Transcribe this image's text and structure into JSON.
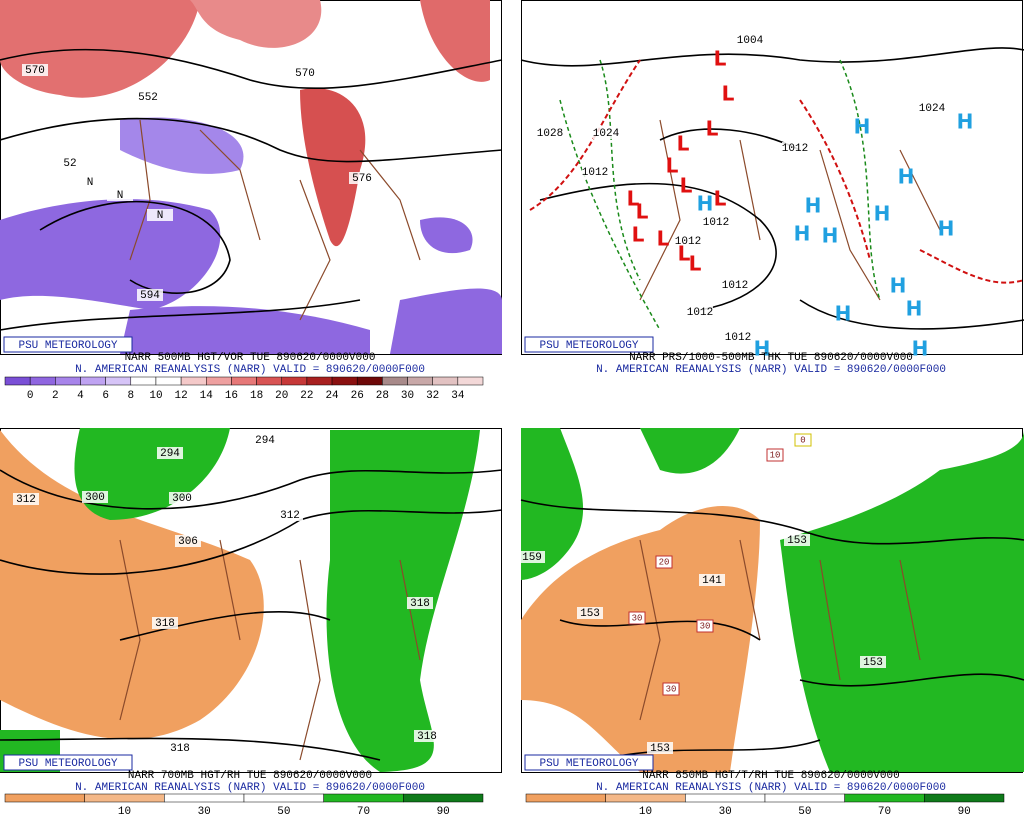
{
  "panels": [
    {
      "badge": "PSU METEOROLOGY",
      "title": "NARR 500MB HGT/VOR TUE 890620/0000V000",
      "subtitle": "N. AMERICAN REANALYSIS (NARR) VALID = 890620/0000F000",
      "colorbar": {
        "colors": [
          "#7a4fd6",
          "#8f66e0",
          "#a784ea",
          "#bfa3f2",
          "#d6c4f7",
          "#ffffff",
          "#ffffff",
          "#f4c9c9",
          "#eea0a0",
          "#e67878",
          "#d85454",
          "#c63838",
          "#a82020",
          "#8a1010",
          "#6e0808",
          "#a88a8a",
          "#c8a8a8",
          "#e2c2c2",
          "#f3d8d8"
        ],
        "labels": [
          "0",
          "2",
          "4",
          "6",
          "8",
          "10",
          "12",
          "14",
          "16",
          "18",
          "20",
          "22",
          "24",
          "26",
          "28",
          "30",
          "32",
          "34"
        ]
      },
      "map_labels": [
        "570",
        "552",
        "570",
        "52",
        "594",
        "576",
        "N",
        "N",
        "N"
      ]
    },
    {
      "badge": "PSU METEOROLOGY",
      "title": "NARR PRS/1000-500MB THK TUE 890620/0000V000",
      "subtitle": "N. AMERICAN REANALYSIS (NARR) VALID = 890620/0000F000",
      "map_labels": [
        "1004",
        "1028",
        "1024",
        "1012",
        "1012",
        "1012",
        "1012",
        "1012",
        "1012",
        "1012",
        "1024"
      ],
      "lows": [
        "L",
        "L",
        "L",
        "L",
        "L",
        "L",
        "L",
        "L",
        "L",
        "L",
        "L",
        "L",
        "L"
      ],
      "highs": [
        "H",
        "H",
        "H",
        "H",
        "H",
        "H",
        "H",
        "H",
        "H",
        "H",
        "H",
        "H",
        "H",
        "H"
      ]
    },
    {
      "badge": "PSU METEOROLOGY",
      "title": "NARR 700MB HGT/RH TUE 890620/0000V000",
      "subtitle": "N. AMERICAN REANALYSIS (NARR) VALID = 890620/0000F000",
      "colorbar": {
        "colors": [
          "#f0a060",
          "#f4b888",
          "#ffffff",
          "#ffffff",
          "#22b822",
          "#0f7a1a"
        ],
        "labels": [
          "10",
          "30",
          "50",
          "70",
          "90"
        ]
      },
      "map_labels": [
        "294",
        "294",
        "300",
        "300",
        "306",
        "312",
        "312",
        "318",
        "318",
        "318",
        "318"
      ]
    },
    {
      "badge": "PSU METEOROLOGY",
      "title": "NARR 850MB HGT/T/RH TUE 890620/0000V000",
      "subtitle": "N. AMERICAN REANALYSIS (NARR) VALID = 890620/0000F000",
      "colorbar": {
        "colors": [
          "#f0a060",
          "#f4b888",
          "#ffffff",
          "#ffffff",
          "#22b822",
          "#0f7a1a"
        ],
        "labels": [
          "10",
          "30",
          "50",
          "70",
          "90"
        ]
      },
      "map_labels": [
        "159",
        "153",
        "141",
        "153",
        "153",
        "153"
      ],
      "boxed_labels": [
        "10",
        "20",
        "30",
        "30",
        "30",
        "0"
      ]
    }
  ]
}
